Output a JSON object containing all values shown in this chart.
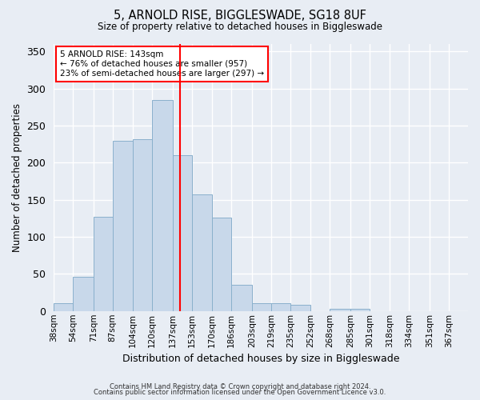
{
  "title": "5, ARNOLD RISE, BIGGLESWADE, SG18 8UF",
  "subtitle": "Size of property relative to detached houses in Biggleswade",
  "xlabel": "Distribution of detached houses by size in Biggleswade",
  "ylabel": "Number of detached properties",
  "footer_line1": "Contains HM Land Registry data © Crown copyright and database right 2024.",
  "footer_line2": "Contains public sector information licensed under the Open Government Licence v3.0.",
  "annotation_title": "5 ARNOLD RISE: 143sqm",
  "annotation_line1": "← 76% of detached houses are smaller (957)",
  "annotation_line2": "23% of semi-detached houses are larger (297) →",
  "property_size": 143,
  "bin_labels": [
    "38sqm",
    "54sqm",
    "71sqm",
    "87sqm",
    "104sqm",
    "120sqm",
    "137sqm",
    "153sqm",
    "170sqm",
    "186sqm",
    "203sqm",
    "219sqm",
    "235sqm",
    "252sqm",
    "268sqm",
    "285sqm",
    "301sqm",
    "318sqm",
    "334sqm",
    "351sqm",
    "367sqm"
  ],
  "bin_edges": [
    38,
    54,
    71,
    87,
    104,
    120,
    137,
    153,
    170,
    186,
    203,
    219,
    235,
    252,
    268,
    285,
    301,
    318,
    334,
    351,
    367,
    383
  ],
  "bar_heights": [
    10,
    46,
    127,
    230,
    232,
    284,
    210,
    157,
    126,
    35,
    10,
    10,
    8,
    0,
    3,
    3,
    0,
    0,
    0,
    0,
    0
  ],
  "bar_color": "#c8d8ea",
  "bar_edge_color": "#8ab0cc",
  "vline_color": "red",
  "vline_x": 143,
  "background_color": "#e8edf4",
  "grid_color": "#ffffff",
  "ylim": [
    0,
    360
  ],
  "yticks": [
    0,
    50,
    100,
    150,
    200,
    250,
    300,
    350
  ]
}
